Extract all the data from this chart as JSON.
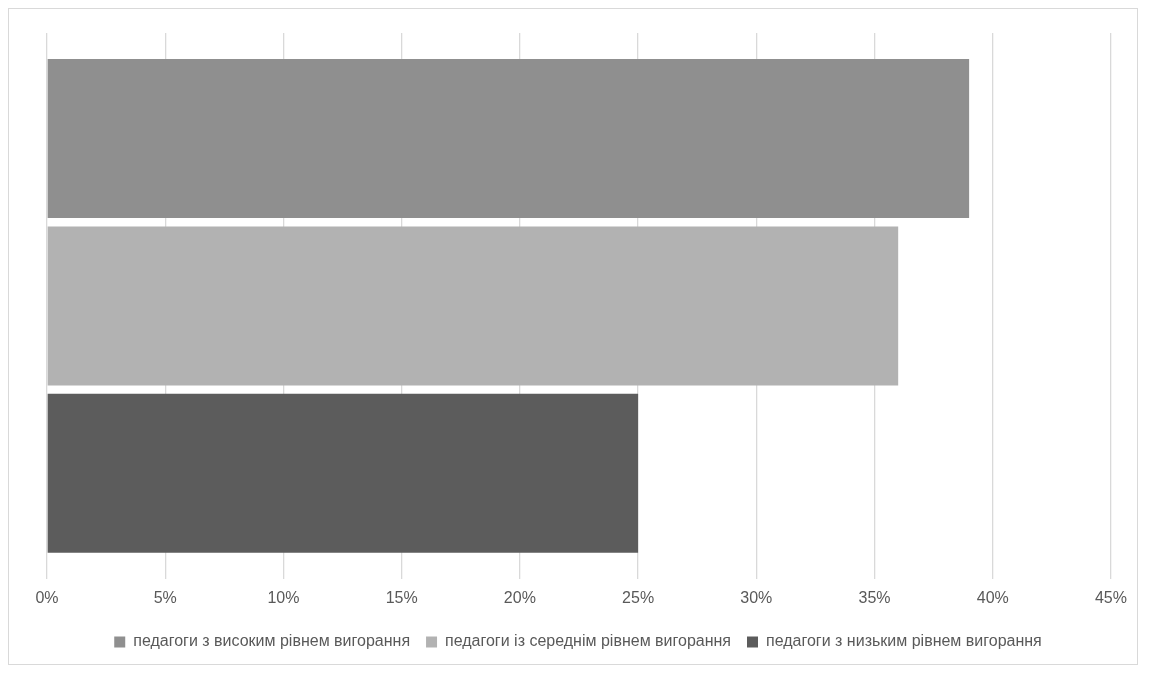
{
  "chart_data": {
    "type": "bar",
    "orientation": "horizontal",
    "categories": [
      null
    ],
    "series": [
      {
        "name": "педагоги з високим рівнем вигорання",
        "color": "#8f8f8f",
        "values": [
          39
        ]
      },
      {
        "name": "педагоги із середнім рівнем вигорання",
        "color": "#b2b2b2",
        "values": [
          36
        ]
      },
      {
        "name": "педагоги з низьким рівнем вигорання",
        "color": "#5c5c5c",
        "values": [
          25
        ]
      }
    ],
    "xlim": [
      0,
      45
    ],
    "xticks": [
      {
        "value": 0,
        "label": "0%"
      },
      {
        "value": 5,
        "label": "5%"
      },
      {
        "value": 10,
        "label": "10%"
      },
      {
        "value": 15,
        "label": "15%"
      },
      {
        "value": 20,
        "label": "20%"
      },
      {
        "value": 25,
        "label": "25%"
      },
      {
        "value": 30,
        "label": "30%"
      },
      {
        "value": 35,
        "label": "35%"
      },
      {
        "value": 40,
        "label": "40%"
      },
      {
        "value": 45,
        "label": "45%"
      }
    ],
    "grid": "x",
    "legend": "bottom",
    "tick_labels": "x"
  }
}
